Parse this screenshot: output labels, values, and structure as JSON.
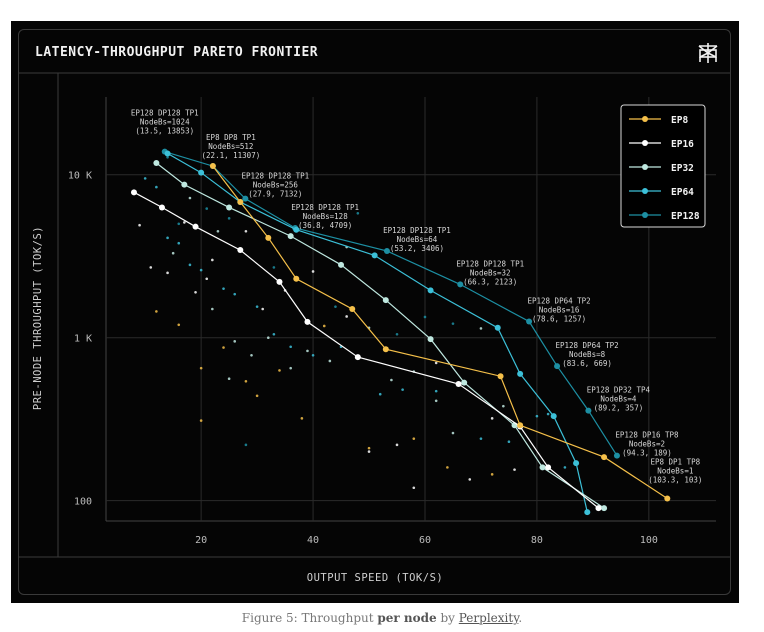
{
  "title": "LATENCY-THROUGHPUT PARETO FRONTIER",
  "caption": {
    "prefix": "Figure 5: Throughput ",
    "bold": "per node",
    "middle": " by ",
    "link": "Perplexity",
    "suffix": "."
  },
  "chart_data": {
    "type": "scatter",
    "title": "LATENCY-THROUGHPUT PARETO FRONTIER",
    "xlabel": "OUTPUT SPEED (TOK/S)",
    "ylabel": "PRE-NODE THROUGHPUT (TOK/S)",
    "xlim": [
      3,
      112
    ],
    "ylim": [
      75,
      30000
    ],
    "yscale": "log",
    "xticks": [
      20,
      40,
      60,
      80,
      100
    ],
    "yticks": [
      {
        "value": 100,
        "label": "100"
      },
      {
        "value": 1000,
        "label": "1 K"
      },
      {
        "value": 10000,
        "label": "10 K"
      }
    ],
    "grid": true,
    "legend_position": "top-right",
    "series": [
      {
        "name": "EP8",
        "color": "#f5c04a",
        "points": [
          [
            22.1,
            11307
          ],
          [
            27,
            6800
          ],
          [
            32,
            4100
          ],
          [
            37,
            2300
          ],
          [
            47,
            1500
          ],
          [
            53,
            850
          ],
          [
            73.5,
            580
          ],
          [
            77,
            290
          ],
          [
            92,
            185
          ],
          [
            103.3,
            103
          ]
        ]
      },
      {
        "name": "EP16",
        "color": "#ffffff",
        "points": [
          [
            8,
            7800
          ],
          [
            13,
            6300
          ],
          [
            19,
            4800
          ],
          [
            27,
            3450
          ],
          [
            34,
            2200
          ],
          [
            39,
            1250
          ],
          [
            48,
            760
          ],
          [
            66,
            520
          ],
          [
            77,
            285
          ],
          [
            82,
            160
          ],
          [
            91,
            90
          ]
        ]
      },
      {
        "name": "EP32",
        "color": "#bfe8e0",
        "points": [
          [
            12,
            11800
          ],
          [
            17,
            8700
          ],
          [
            25,
            6300
          ],
          [
            36,
            4200
          ],
          [
            45,
            2800
          ],
          [
            53,
            1700
          ],
          [
            61,
            980
          ],
          [
            67,
            530
          ],
          [
            76,
            290
          ],
          [
            81,
            160
          ],
          [
            92,
            90
          ]
        ]
      },
      {
        "name": "EP64",
        "color": "#3cc0d8",
        "points": [
          [
            14,
            13500
          ],
          [
            20,
            10300
          ],
          [
            27,
            6800
          ],
          [
            37,
            4600
          ],
          [
            51,
            3200
          ],
          [
            61,
            1950
          ],
          [
            73,
            1150
          ],
          [
            77,
            600
          ],
          [
            83,
            330
          ],
          [
            87,
            170
          ],
          [
            89,
            85
          ]
        ]
      },
      {
        "name": "EP128",
        "color": "#1d8fa3",
        "points": [
          [
            13.5,
            13853
          ],
          [
            22.1,
            11307
          ],
          [
            27.9,
            7132
          ],
          [
            36.8,
            4709
          ],
          [
            53.2,
            3406
          ],
          [
            66.3,
            2123
          ],
          [
            78.6,
            1257
          ],
          [
            83.6,
            669
          ],
          [
            89.2,
            357
          ],
          [
            94.3,
            189
          ]
        ]
      }
    ],
    "annotations": [
      {
        "lines": [
          "EP128 DP128 TP1",
          "NodeBs=1024",
          "(13.5, 13853)"
        ],
        "x": 13.5,
        "y": 13853
      },
      {
        "lines": [
          "EP8 DP8 TP1",
          "NodeBs=512",
          "(22.1, 11307)"
        ],
        "x": 22.1,
        "y": 11307
      },
      {
        "lines": [
          "EP128 DP128 TP1",
          "NodeBs=256",
          "(27.9, 7132)"
        ],
        "x": 27.9,
        "y": 7132
      },
      {
        "lines": [
          "EP128 DP128 TP1",
          "NodeBs=128",
          "(36.8, 4709)"
        ],
        "x": 36.8,
        "y": 4709
      },
      {
        "lines": [
          "EP128 DP128 TP1",
          "NodeBs=64",
          "(53.2, 3406)"
        ],
        "x": 53.2,
        "y": 3406
      },
      {
        "lines": [
          "EP128 DP128 TP1",
          "NodeBs=32",
          "(66.3, 2123)"
        ],
        "x": 66.3,
        "y": 2123
      },
      {
        "lines": [
          "EP128 DP64 TP2",
          "NodeBs=16",
          "(78.6, 1257)"
        ],
        "x": 78.6,
        "y": 1257
      },
      {
        "lines": [
          "EP128 DP64 TP2",
          "NodeBs=8",
          "(83.6, 669)"
        ],
        "x": 83.6,
        "y": 669
      },
      {
        "lines": [
          "EP128 DP32 TP4",
          "NodeBs=4",
          "(89.2, 357)"
        ],
        "x": 89.2,
        "y": 357
      },
      {
        "lines": [
          "EP128 DP16 TP8",
          "NodeBs=2",
          "(94.3, 189)"
        ],
        "x": 94.3,
        "y": 189
      },
      {
        "lines": [
          "EP8 DP1 TP8",
          "NodeBs=1",
          "(103.3, 103)"
        ],
        "x": 103.3,
        "y": 103
      }
    ],
    "scatter_clusters": [
      {
        "color": "#3cc0d8",
        "points": [
          [
            10,
            9500
          ],
          [
            12,
            8400
          ],
          [
            14,
            4100
          ],
          [
            16,
            3800
          ],
          [
            18,
            2800
          ],
          [
            20,
            2600
          ],
          [
            24,
            2000
          ],
          [
            26,
            1850
          ],
          [
            30,
            1550
          ],
          [
            33,
            1050
          ],
          [
            36,
            880
          ],
          [
            40,
            780
          ],
          [
            45,
            880
          ],
          [
            52,
            450
          ],
          [
            56,
            480
          ],
          [
            62,
            470
          ],
          [
            66,
            530
          ],
          [
            70,
            240
          ],
          [
            75,
            230
          ],
          [
            80,
            330
          ],
          [
            82,
            340
          ],
          [
            85,
            160
          ]
        ]
      },
      {
        "color": "#f5c04a",
        "points": [
          [
            12,
            1450
          ],
          [
            16,
            1200
          ],
          [
            20,
            650
          ],
          [
            20,
            310
          ],
          [
            24,
            870
          ],
          [
            28,
            540
          ],
          [
            30,
            440
          ],
          [
            34,
            630
          ],
          [
            38,
            320
          ],
          [
            42,
            1180
          ],
          [
            50,
            210
          ],
          [
            58,
            240
          ],
          [
            64,
            160
          ],
          [
            72,
            145
          ]
        ]
      },
      {
        "color": "#ffffff",
        "points": [
          [
            9,
            4900
          ],
          [
            11,
            2700
          ],
          [
            14,
            2500
          ],
          [
            17,
            5100
          ],
          [
            19,
            1900
          ],
          [
            21,
            2300
          ],
          [
            22,
            3000
          ],
          [
            28,
            4500
          ],
          [
            31,
            1500
          ],
          [
            35,
            1950
          ],
          [
            40,
            2550
          ],
          [
            46,
            1350
          ],
          [
            50,
            200
          ],
          [
            55,
            220
          ],
          [
            58,
            120
          ],
          [
            62,
            700
          ],
          [
            68,
            135
          ],
          [
            72,
            320
          ],
          [
            76,
            155
          ]
        ]
      },
      {
        "color": "#bfe8e0",
        "points": [
          [
            15,
            3300
          ],
          [
            18,
            7200
          ],
          [
            22,
            1500
          ],
          [
            23,
            4500
          ],
          [
            25,
            560
          ],
          [
            26,
            950
          ],
          [
            29,
            780
          ],
          [
            32,
            1000
          ],
          [
            36,
            650
          ],
          [
            39,
            830
          ],
          [
            43,
            720
          ],
          [
            46,
            3600
          ],
          [
            50,
            1150
          ],
          [
            54,
            550
          ],
          [
            58,
            620
          ],
          [
            62,
            410
          ],
          [
            65,
            260
          ],
          [
            70,
            1140
          ],
          [
            74,
            380
          ]
        ]
      },
      {
        "color": "#1d8fa3",
        "points": [
          [
            14,
            12800
          ],
          [
            16,
            5000
          ],
          [
            21,
            6200
          ],
          [
            25,
            5400
          ],
          [
            28,
            220
          ],
          [
            33,
            2700
          ],
          [
            44,
            1550
          ],
          [
            48,
            5800
          ],
          [
            55,
            1050
          ],
          [
            60,
            1340
          ],
          [
            65,
            1220
          ]
        ]
      }
    ]
  }
}
